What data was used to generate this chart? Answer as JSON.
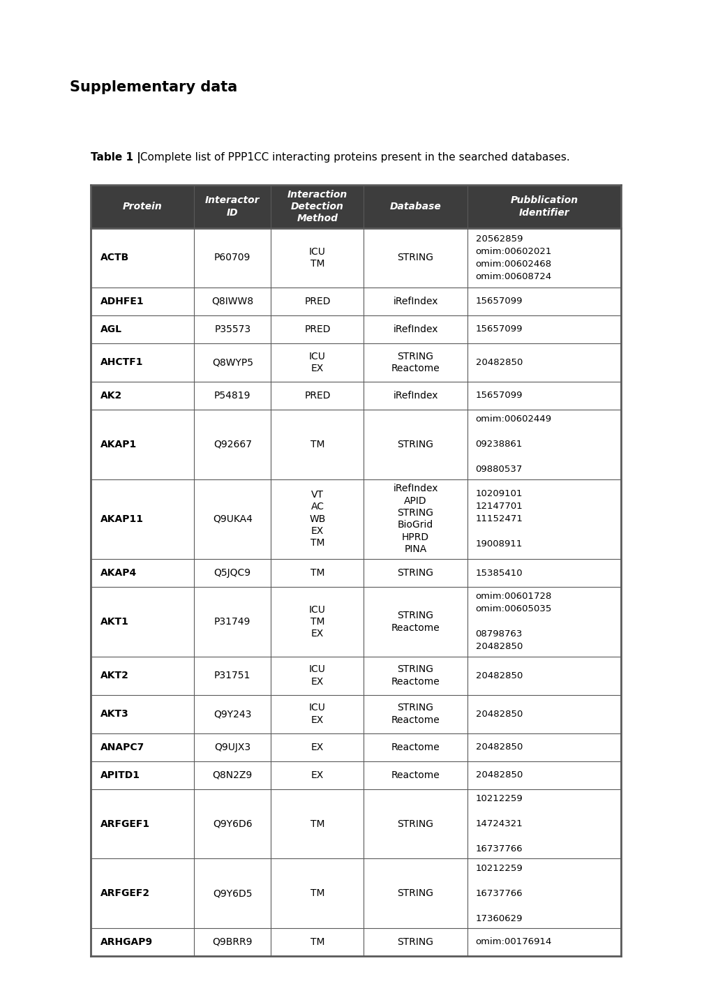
{
  "title_sup": "Supplementary data",
  "caption_bold": "Table 1 |",
  "caption_rest": " Complete list of PPP1CC interacting proteins present in the searched databases.",
  "header": [
    "Protein",
    "Interactor\nID",
    "Interaction\nDetection\nMethod",
    "Database",
    "Pubblication\nIdentifier"
  ],
  "header_bg": "#3d3d3d",
  "header_fg": "#ffffff",
  "border_color": "#666666",
  "rows": [
    {
      "protein": "ACTB",
      "interactor": "P60709",
      "method": "ICU\nTM",
      "database": "STRING",
      "pub": "20562859\nomim:00602021\nomim:00602468\nomim:00608724"
    },
    {
      "protein": "ADHFE1",
      "interactor": "Q8IWW8",
      "method": "PRED",
      "database": "iRefIndex",
      "pub": "15657099"
    },
    {
      "protein": "AGL",
      "interactor": "P35573",
      "method": "PRED",
      "database": "iRefIndex",
      "pub": "15657099"
    },
    {
      "protein": "AHCTF1",
      "interactor": "Q8WYP5",
      "method": "ICU\nEX",
      "database": "STRING\nReactome",
      "pub": "20482850"
    },
    {
      "protein": "AK2",
      "interactor": "P54819",
      "method": "PRED",
      "database": "iRefIndex",
      "pub": "15657099"
    },
    {
      "protein": "AKAP1",
      "interactor": "Q92667",
      "method": "TM",
      "database": "STRING",
      "pub": "omim:00602449\n\n09238861\n\n09880537"
    },
    {
      "protein": "AKAP11",
      "interactor": "Q9UKA4",
      "method": "VT\nAC\nWB\nEX\nTM",
      "database": "iRefIndex\nAPID\nSTRING\nBioGrid\nHPRD\nPINA",
      "pub": "10209101\n12147701\n11152471\n\n19008911"
    },
    {
      "protein": "AKAP4",
      "interactor": "Q5JQC9",
      "method": "TM",
      "database": "STRING",
      "pub": "15385410"
    },
    {
      "protein": "AKT1",
      "interactor": "P31749",
      "method": "ICU\nTM\nEX",
      "database": "STRING\nReactome",
      "pub": "omim:00601728\nomim:00605035\n\n08798763\n20482850"
    },
    {
      "protein": "AKT2",
      "interactor": "P31751",
      "method": "ICU\nEX",
      "database": "STRING\nReactome",
      "pub": "20482850"
    },
    {
      "protein": "AKT3",
      "interactor": "Q9Y243",
      "method": "ICU\nEX",
      "database": "STRING\nReactome",
      "pub": "20482850"
    },
    {
      "protein": "ANAPC7",
      "interactor": "Q9UJX3",
      "method": "EX",
      "database": "Reactome",
      "pub": "20482850"
    },
    {
      "protein": "APITD1",
      "interactor": "Q8N2Z9",
      "method": "EX",
      "database": "Reactome",
      "pub": "20482850"
    },
    {
      "protein": "ARFGEF1",
      "interactor": "Q9Y6D6",
      "method": "TM",
      "database": "STRING",
      "pub": "10212259\n\n14724321\n\n16737766"
    },
    {
      "protein": "ARFGEF2",
      "interactor": "Q9Y6D5",
      "method": "TM",
      "database": "STRING",
      "pub": "10212259\n\n16737766\n\n17360629"
    },
    {
      "protein": "ARHGAP9",
      "interactor": "Q9BRR9",
      "method": "TM",
      "database": "STRING",
      "pub": "omim:00176914"
    }
  ],
  "fig_width": 10.2,
  "fig_height": 14.43,
  "dpi": 100
}
